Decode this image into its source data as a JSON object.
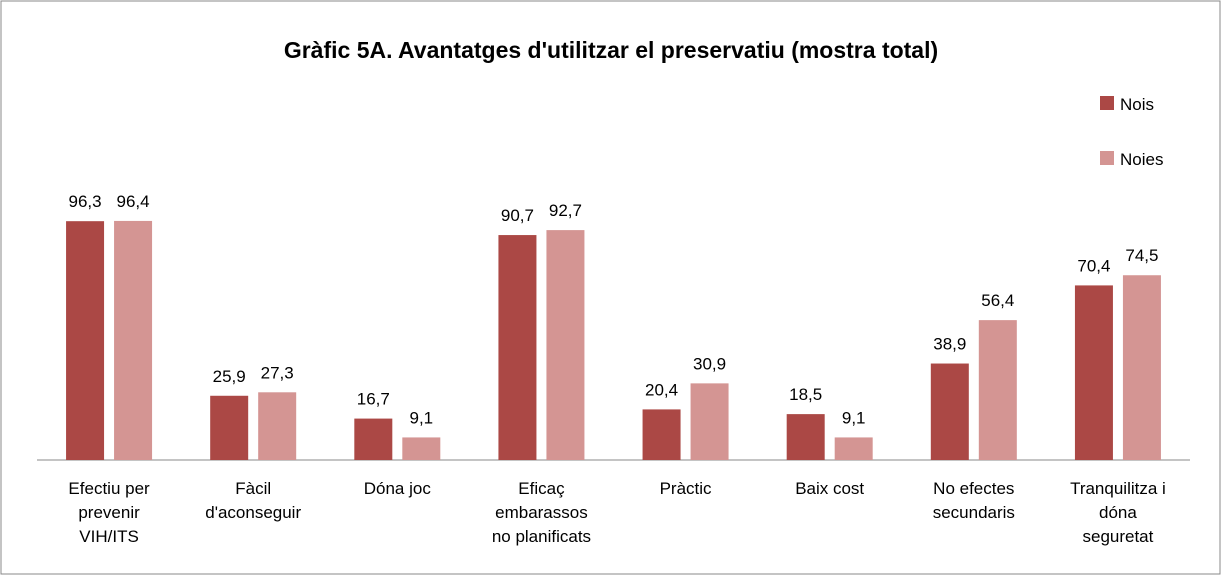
{
  "chart_data": {
    "type": "bar",
    "title": "Gràfic 5A. Avantatges d'utilitzar el preservatiu (mostra total)",
    "categories": [
      "Efectiu per prevenir VIH/ITS",
      "Fàcil d'aconseguir",
      "Dóna joc",
      "Eficaç embarassos no planificats",
      "Pràctic",
      "Baix cost",
      "No efectes secundaris",
      "Tranquilitza i dóna seguretat"
    ],
    "series": [
      {
        "name": "Nois",
        "color": "#ab4845",
        "values": [
          96.3,
          25.9,
          16.7,
          90.7,
          20.4,
          18.5,
          38.9,
          70.4
        ],
        "value_labels": [
          "96,3",
          "25,9",
          "16,7",
          "90,7",
          "20,4",
          "18,5",
          "38,9",
          "70,4"
        ]
      },
      {
        "name": "Noies",
        "color": "#d49593",
        "values": [
          96.4,
          27.3,
          9.1,
          92.7,
          30.9,
          9.1,
          56.4,
          74.5
        ],
        "value_labels": [
          "96,4",
          "27,3",
          "9,1",
          "92,7",
          "30,9",
          "9,1",
          "56,4",
          "74,5"
        ]
      }
    ],
    "ylim": [
      0,
      100
    ],
    "legend": "right"
  }
}
